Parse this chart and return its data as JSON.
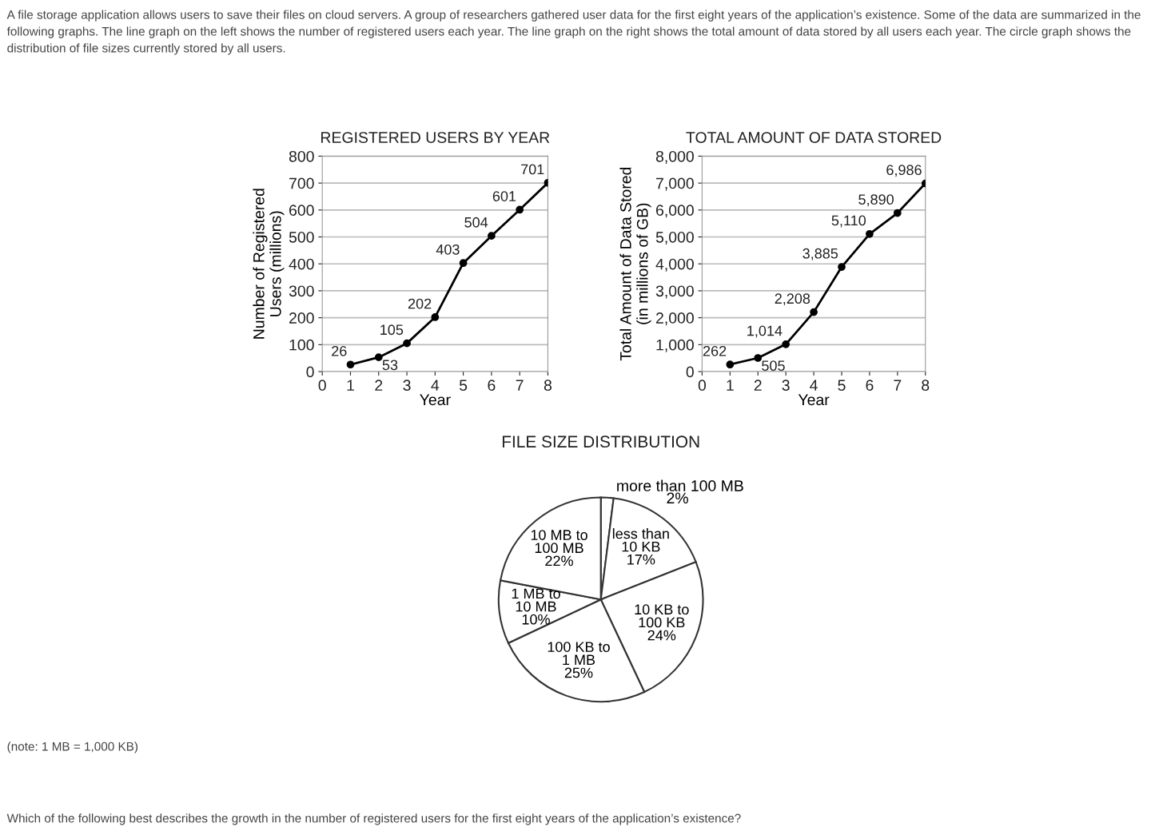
{
  "chart_data": [
    {
      "type": "line",
      "title": "REGISTERED USERS BY YEAR",
      "xlabel": "Year",
      "ylabel": "Number of Registered\nUsers (millions)",
      "annotations": [
        "A file storage application allows users to save their files on cloud servers. A group of researchers gathered user data for the first eight years of the application’s existence. Some of the data are summarized in the following graphs. The line graph on the left shows the number of registered users each year. The line graph on the right shows the total amount of data stored by all users each year. The circle graph shows the distribution of file sizes currently stored by all users."
      ],
      "x": [
        1,
        2,
        3,
        4,
        5,
        6,
        7,
        8
      ],
      "series": [
        {
          "color": "#000000",
          "values": [
            26,
            53,
            105,
            202,
            403,
            504,
            601,
            701
          ]
        }
      ],
      "xlim": [
        0,
        8
      ],
      "xticks": [
        0,
        1,
        2,
        3,
        4,
        5,
        6,
        7,
        8
      ],
      "ylim": [
        0,
        800
      ],
      "yticks": [
        0,
        100,
        200,
        300,
        400,
        500,
        600,
        700,
        800
      ],
      "grid": "y",
      "marker": "circle",
      "line_style": "solid",
      "data_labels": true
    },
    {
      "type": "line",
      "title": "TOTAL AMOUNT OF DATA STORED",
      "xlabel": "Year",
      "ylabel": "Total Amount of Data Stored\n(in millions of GB)",
      "x": [
        1,
        2,
        3,
        4,
        5,
        6,
        7,
        8
      ],
      "series": [
        {
          "color": "#000000",
          "values": [
            262,
            505,
            1014,
            2208,
            3885,
            5110,
            5890,
            6986
          ],
          "value_labels": [
            "262",
            "505",
            "1,014",
            "2,208",
            "3,885",
            "5,110",
            "5,890",
            "6,986"
          ]
        }
      ],
      "xlim": [
        0,
        8
      ],
      "xticks": [
        0,
        1,
        2,
        3,
        4,
        5,
        6,
        7,
        8
      ],
      "ylim": [
        0,
        8000
      ],
      "yticks": [
        0,
        {
          "value": 1000,
          "label": "1,000"
        },
        {
          "value": 2000,
          "label": "2,000"
        },
        {
          "value": 3000,
          "label": "3,000"
        },
        {
          "value": 4000,
          "label": "4,000"
        },
        {
          "value": 5000,
          "label": "5,000"
        },
        {
          "value": 6000,
          "label": "6,000"
        },
        {
          "value": 7000,
          "label": "7,000"
        },
        {
          "value": 8000,
          "label": "8,000"
        }
      ],
      "grid": "y",
      "marker": "circle",
      "line_style": "solid"
    },
    {
      "type": "pie",
      "title": "FILE SIZE DISTRIBUTION",
      "categories": [
        "more than 100 MB",
        "less than\n10 KB",
        "10 KB to\n100 KB",
        "100 KB to\n1 MB",
        "1 MB to\n10 MB",
        "10 MB to\n100 MB"
      ],
      "values": [
        2,
        17,
        24,
        25,
        10,
        22
      ],
      "colors": [
        "#ffffff",
        "#ffffff",
        "#ffffff",
        "#ffffff",
        "#ffffff",
        "#ffffff"
      ],
      "value_labels": [
        "2%",
        "17%",
        "24%",
        "25%",
        "10%",
        "22%"
      ],
      "annotations": [
        "(note: 1 MB = 1,000 KB)",
        "Which of the following best describes the growth in the number of registered users for the first eight years of the application’s existence?"
      ]
    }
  ]
}
